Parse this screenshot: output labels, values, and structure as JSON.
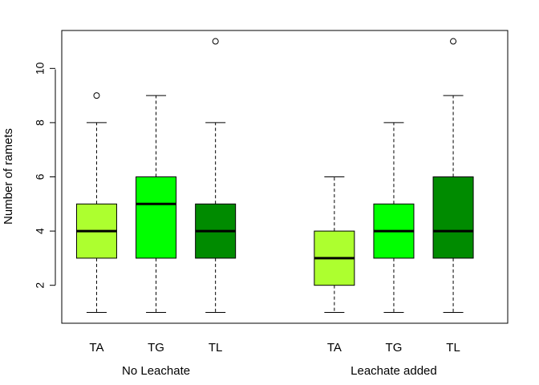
{
  "chart_data": {
    "type": "box",
    "title": "",
    "xlabel": "",
    "ylabel": "Number of ramets",
    "ylim": [
      0.6,
      11.4
    ],
    "yticks": [
      "2",
      "4",
      "6",
      "8",
      "10"
    ],
    "groups": [
      {
        "label": "No Leachate",
        "boxes": [
          {
            "label": "TA",
            "color": "#adff2f",
            "min": 1,
            "q1": 3,
            "median": 4,
            "q3": 5,
            "max": 8,
            "outliers": [
              9
            ]
          },
          {
            "label": "TG",
            "color": "#00ff00",
            "min": 1,
            "q1": 3,
            "median": 5,
            "q3": 6,
            "max": 9,
            "outliers": []
          },
          {
            "label": "TL",
            "color": "#008b00",
            "min": 1,
            "q1": 3,
            "median": 4,
            "q3": 5,
            "max": 8,
            "outliers": [
              11
            ]
          }
        ]
      },
      {
        "label": "Leachate added",
        "boxes": [
          {
            "label": "TA",
            "color": "#adff2f",
            "min": 1,
            "q1": 2,
            "median": 3,
            "q3": 4,
            "max": 6,
            "outliers": []
          },
          {
            "label": "TG",
            "color": "#00ff00",
            "min": 1,
            "q1": 3,
            "median": 4,
            "q3": 5,
            "max": 8,
            "outliers": []
          },
          {
            "label": "TL",
            "color": "#008b00",
            "min": 1,
            "q1": 3,
            "median": 4,
            "q3": 6,
            "max": 9,
            "outliers": [
              11
            ]
          }
        ]
      }
    ]
  }
}
